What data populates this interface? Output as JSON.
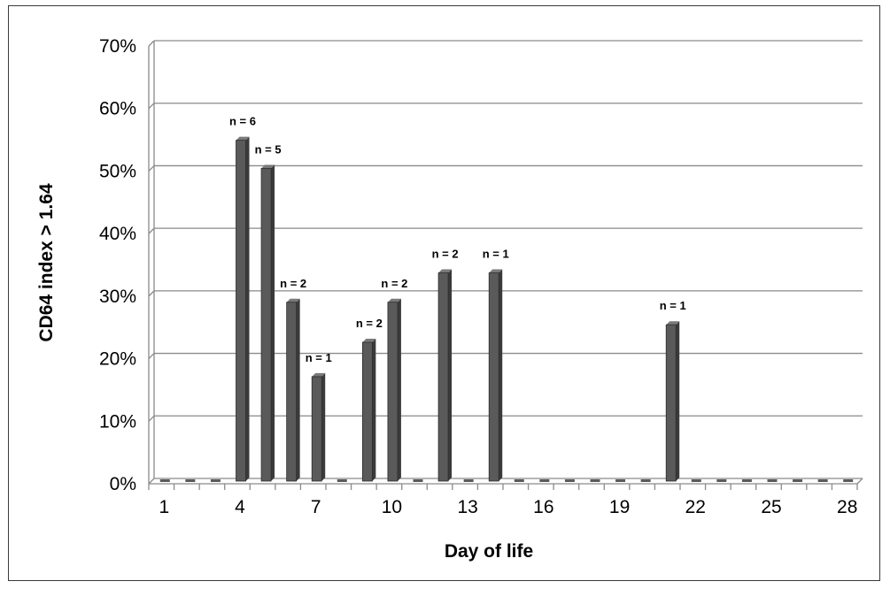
{
  "chart_data": {
    "type": "bar",
    "title": "",
    "xlabel": "Day of life",
    "ylabel": "CD64 index > 1.64",
    "ylim": [
      0,
      70
    ],
    "yticks": [
      "0%",
      "10%",
      "20%",
      "30%",
      "40%",
      "50%",
      "60%",
      "70%"
    ],
    "y_tick_values": [
      0,
      10,
      20,
      30,
      40,
      50,
      60,
      70
    ],
    "grid": true,
    "legend": "none",
    "bar_color": "#5a5a5a",
    "x": [
      1,
      2,
      3,
      4,
      5,
      6,
      7,
      8,
      9,
      10,
      11,
      12,
      13,
      14,
      15,
      16,
      17,
      18,
      19,
      20,
      21,
      22,
      23,
      24,
      25,
      26,
      27,
      28
    ],
    "x_tick_labels": [
      "1",
      "4",
      "7",
      "10",
      "13",
      "16",
      "19",
      "22",
      "25",
      "28"
    ],
    "x_tick_values": [
      1,
      4,
      7,
      10,
      13,
      16,
      19,
      22,
      25,
      28
    ],
    "values": [
      0,
      0,
      0,
      54.5,
      50,
      28.6,
      16.7,
      0,
      22.2,
      28.6,
      0,
      33.3,
      0,
      33.3,
      0,
      0,
      0,
      0,
      0,
      0,
      25,
      0,
      0,
      0,
      0,
      0,
      0,
      0
    ],
    "data_labels": [
      "",
      "",
      "",
      "n = 6",
      "n = 5",
      "n = 2",
      "n = 1",
      "",
      "n = 2",
      "n = 2",
      "",
      "n = 2",
      "",
      "n = 1",
      "",
      "",
      "",
      "",
      "",
      "",
      "n = 1",
      "",
      "",
      "",
      "",
      "",
      "",
      ""
    ]
  }
}
